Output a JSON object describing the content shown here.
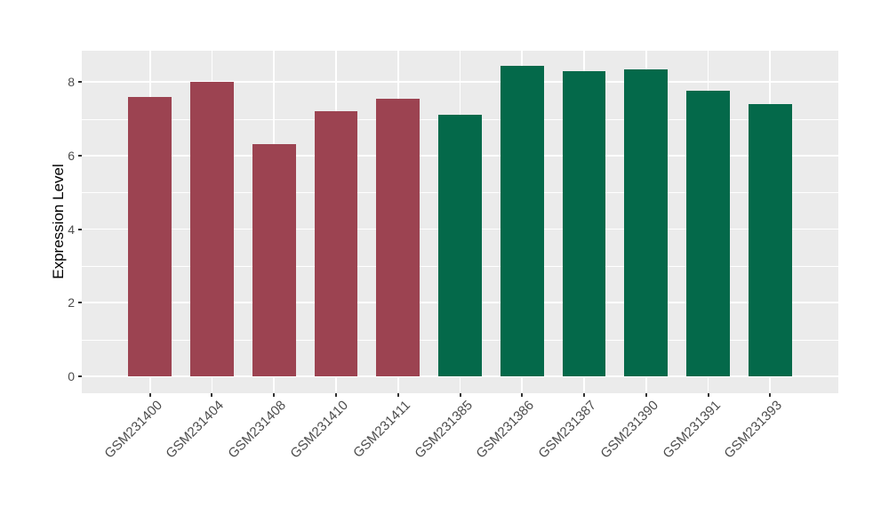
{
  "chart_data": {
    "type": "bar",
    "title": "",
    "ylabel": "Expression Level",
    "xlabel": "",
    "categories": [
      "GSM231400",
      "GSM231404",
      "GSM231408",
      "GSM231410",
      "GSM231411",
      "GSM231385",
      "GSM231386",
      "GSM231387",
      "GSM231390",
      "GSM231391",
      "GSM231393"
    ],
    "values": [
      7.6,
      8.0,
      6.3,
      7.2,
      7.55,
      7.1,
      8.45,
      8.3,
      8.35,
      7.75,
      7.4
    ],
    "bar_colors": [
      "#9C4351",
      "#9C4351",
      "#9C4351",
      "#9C4351",
      "#9C4351",
      "#04694A",
      "#04694A",
      "#04694A",
      "#04694A",
      "#04694A",
      "#04694A"
    ],
    "group_colors": {
      "maroon": "#9C4351",
      "green": "#04694A"
    },
    "yticks": [
      0,
      2,
      4,
      6,
      8
    ],
    "ytick_labels": [
      "0",
      "2",
      "4",
      "6",
      "8"
    ],
    "yticks_minor": [
      1,
      3,
      5,
      7
    ],
    "ylim": [
      -0.46,
      8.85
    ],
    "bar_width_fraction": 0.7,
    "grid": true,
    "legend_position": "none",
    "colors": {
      "panel_background": "#EBEBEB",
      "figure_background": "#FFFFFF",
      "gridline": "#FFFFFF",
      "tick_label": "#4D4D4D",
      "tick_mark": "#333333",
      "axis_title": "#000000"
    }
  }
}
